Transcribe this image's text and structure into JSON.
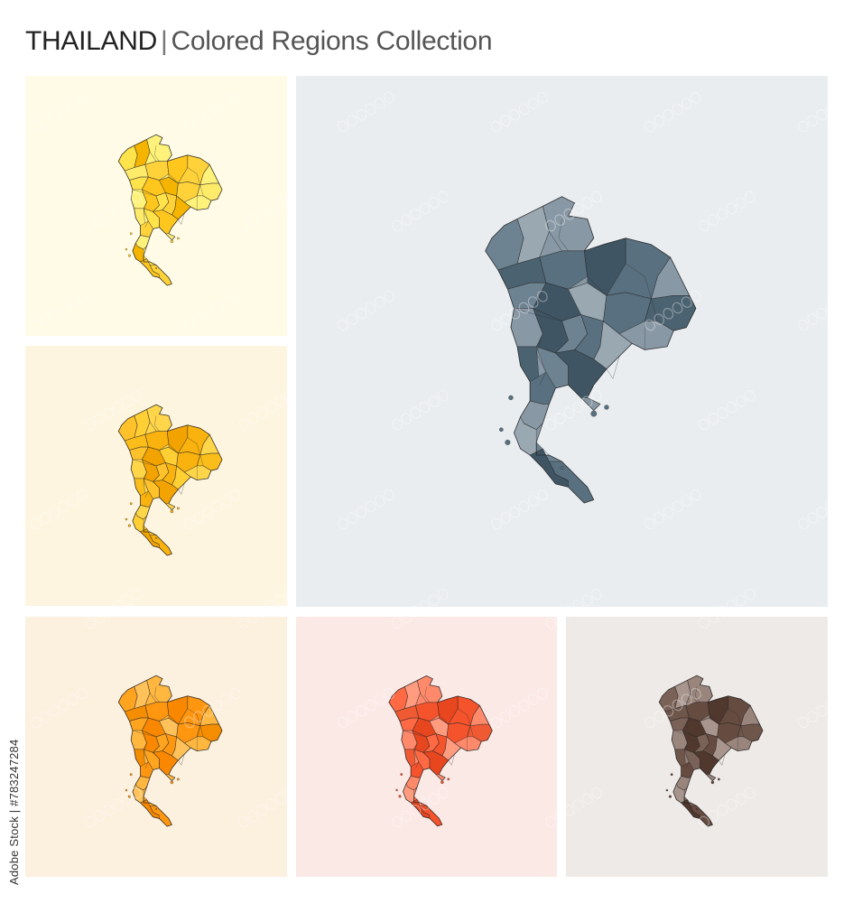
{
  "header": {
    "country": "THAILAND",
    "separator": "|",
    "subtitle": "Colored Regions Collection"
  },
  "watermark": {
    "id": "Adobe Stock | #783247284"
  },
  "panels": [
    {
      "name": "yellow",
      "background": "#fffbe6",
      "colors": [
        "#fff27a",
        "#ffe34a",
        "#ffd23a",
        "#ffc61e",
        "#f5b400",
        "#ffeb6a"
      ]
    },
    {
      "name": "amber",
      "background": "#fdf5e0",
      "colors": [
        "#ffd54a",
        "#ffc22a",
        "#f9b20e",
        "#f2a300",
        "#ffcf33",
        "#fbbd1a"
      ]
    },
    {
      "name": "slate",
      "background": "#eaedf0",
      "colors": [
        "#8898a5",
        "#6e8391",
        "#58707f",
        "#3f5563",
        "#9aa8b2",
        "#4b6270"
      ]
    },
    {
      "name": "orange",
      "background": "#fcf0df",
      "colors": [
        "#ffb740",
        "#ffa41f",
        "#ff9610",
        "#f98800",
        "#ffc25a",
        "#f58d00"
      ]
    },
    {
      "name": "coral",
      "background": "#fbe9e6",
      "colors": [
        "#ff8a6b",
        "#ff6a45",
        "#f5532c",
        "#e8461e",
        "#ff9c80",
        "#ef5a33"
      ]
    },
    {
      "name": "brown",
      "background": "#eeeae7",
      "colors": [
        "#9a857c",
        "#7b6258",
        "#664b40",
        "#50382e",
        "#a8958d",
        "#6f564b"
      ]
    }
  ]
}
